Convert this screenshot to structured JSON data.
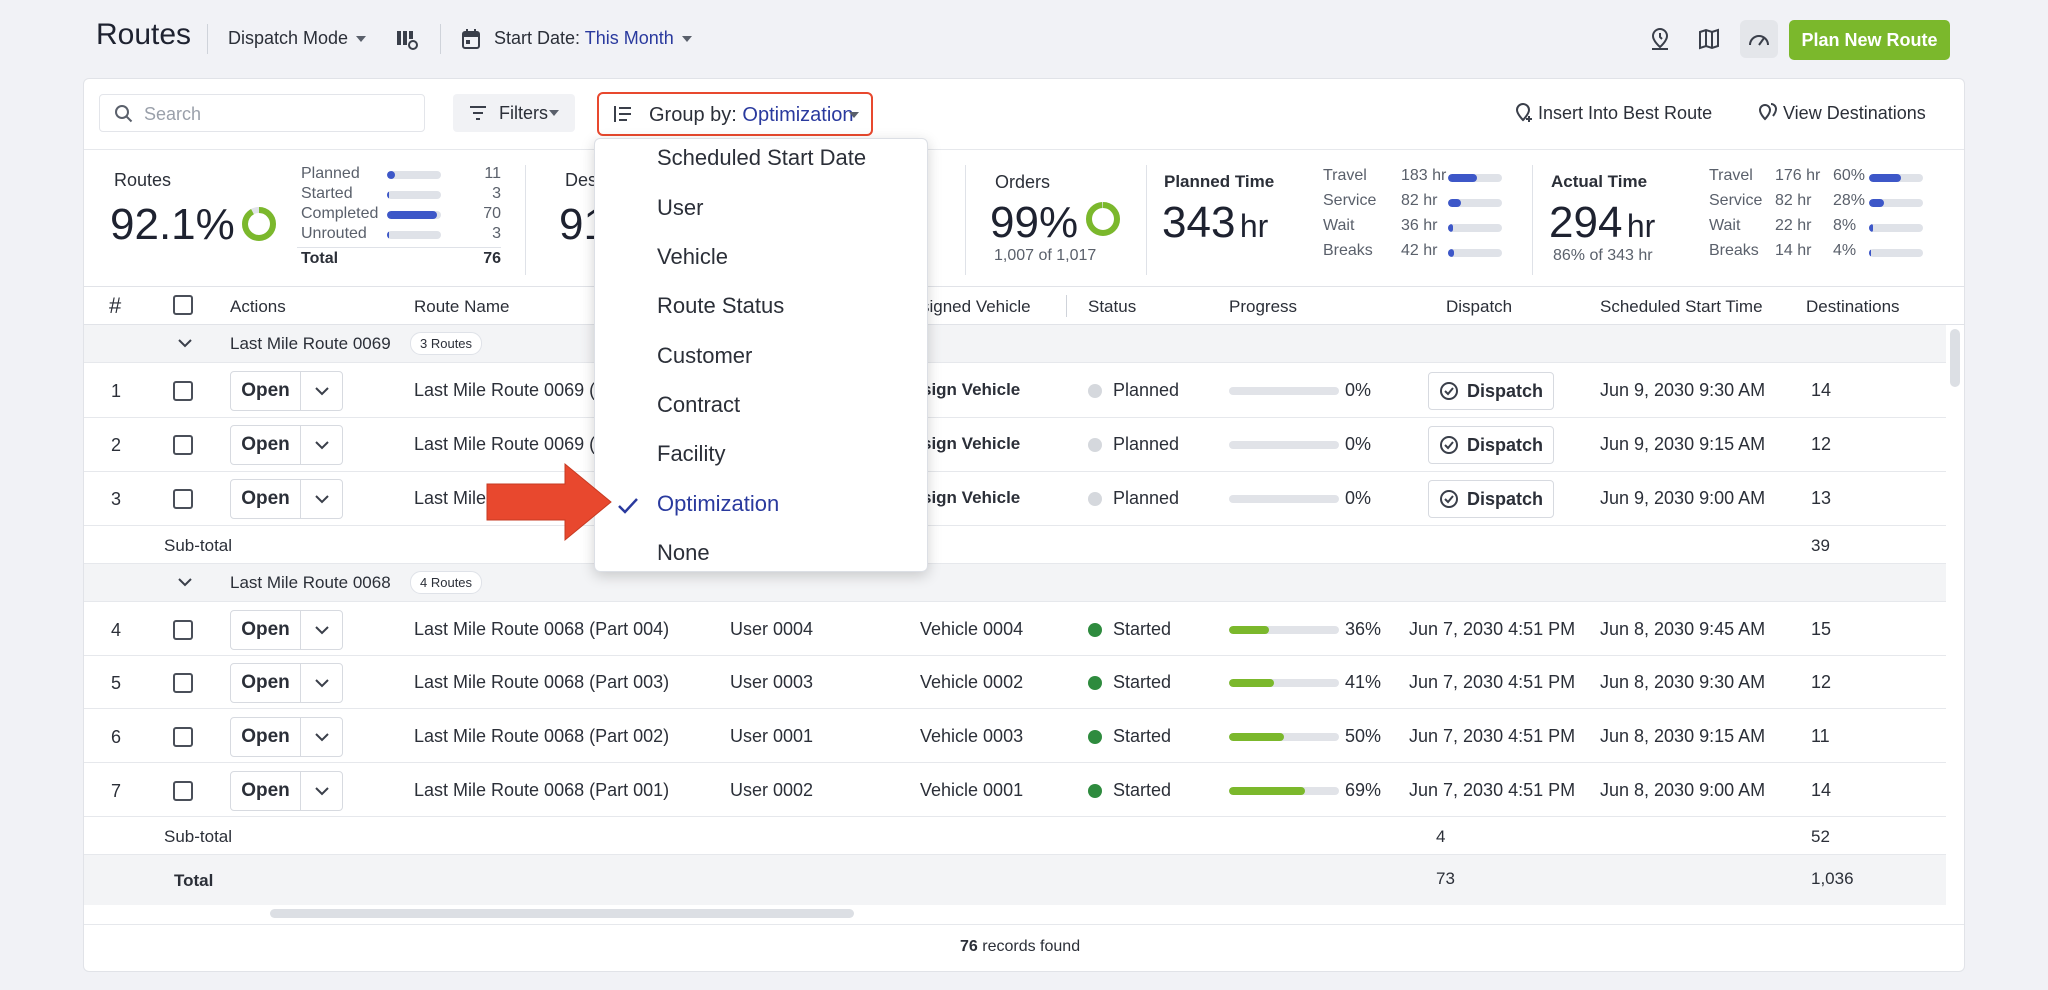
{
  "header": {
    "title": "Routes",
    "mode_label": "Dispatch Mode",
    "start_date_label": "Start Date:",
    "start_date_value": "This Month",
    "plan_button": "Plan New Route"
  },
  "toolbar": {
    "search_placeholder": "Search",
    "filters_label": "Filters",
    "group_by_label": "Group by:",
    "group_by_value": "Optimization",
    "insert_best_route": "Insert Into Best Route",
    "view_destinations": "View Destinations"
  },
  "stats": {
    "routes": {
      "label": "Routes",
      "percent": "92.1%",
      "ring_fraction": 0.921,
      "rows": [
        {
          "label": "Planned",
          "value": "11",
          "fraction": 0.14
        },
        {
          "label": "Started",
          "value": "3",
          "fraction": 0.04
        },
        {
          "label": "Completed",
          "value": "70",
          "fraction": 0.92
        },
        {
          "label": "Unrouted",
          "value": "3",
          "fraction": 0.04
        }
      ],
      "total_label": "Total",
      "total_value": "76"
    },
    "destinations": {
      "label": "Des",
      "percent": "91"
    },
    "orders": {
      "label": "Orders",
      "percent": "99%",
      "ring_fraction": 0.99,
      "sub": "1,007 of 1,017"
    },
    "planned_time": {
      "label": "Planned Time",
      "value": "343",
      "unit": "hr",
      "rows": [
        {
          "label": "Travel",
          "value": "183 hr",
          "fraction": 0.53
        },
        {
          "label": "Service",
          "value": "82 hr",
          "fraction": 0.24
        },
        {
          "label": "Wait",
          "value": "36 hr",
          "fraction": 0.1
        },
        {
          "label": "Breaks",
          "value": "42 hr",
          "fraction": 0.12
        }
      ]
    },
    "actual_time": {
      "label": "Actual Time",
      "value": "294",
      "unit": "hr",
      "sub": "86% of 343 hr",
      "rows": [
        {
          "label": "Travel",
          "value": "176 hr",
          "pct": "60%",
          "fraction": 0.6
        },
        {
          "label": "Service",
          "value": "82 hr",
          "pct": "28%",
          "fraction": 0.28
        },
        {
          "label": "Wait",
          "value": "22 hr",
          "pct": "8%",
          "fraction": 0.08
        },
        {
          "label": "Breaks",
          "value": "14 hr",
          "pct": "4%",
          "fraction": 0.04
        }
      ]
    }
  },
  "table": {
    "columns": {
      "num": "#",
      "actions": "Actions",
      "route_name": "Route Name",
      "assigned_vehicle": "signed Vehicle",
      "status": "Status",
      "progress": "Progress",
      "dispatch": "Dispatch",
      "scheduled_start": "Scheduled Start Time",
      "destinations": "Destinations"
    },
    "open_label": "Open",
    "dispatch_label": "Dispatch",
    "group1": {
      "name": "Last Mile Route 0069",
      "badge": "3 Routes",
      "rows": [
        {
          "num": "1",
          "route": "Last Mile Route 0069 (",
          "vehicle": "sign Vehicle",
          "status": "Planned",
          "progress": "0%",
          "progress_fraction": 0,
          "start": "Jun 9, 2030 9:30 AM",
          "dest": "14"
        },
        {
          "num": "2",
          "route": "Last Mile Route 0069 (",
          "vehicle": "sign Vehicle",
          "status": "Planned",
          "progress": "0%",
          "progress_fraction": 0,
          "start": "Jun 9, 2030 9:15 AM",
          "dest": "12"
        },
        {
          "num": "3",
          "route": "Last Mile",
          "vehicle": "sign Vehicle",
          "status": "Planned",
          "progress": "0%",
          "progress_fraction": 0,
          "start": "Jun 9, 2030 9:00 AM",
          "dest": "13"
        }
      ],
      "subtotal_label": "Sub-total",
      "subtotal_dest": "39"
    },
    "group2": {
      "name": "Last Mile Route 0068",
      "badge": "4 Routes",
      "rows": [
        {
          "num": "4",
          "route": "Last Mile Route 0068 (Part 004)",
          "user": "User 0004",
          "vehicle": "Vehicle 0004",
          "status": "Started",
          "progress": "36%",
          "progress_fraction": 0.36,
          "dispatch": "Jun 7, 2030 4:51 PM",
          "start": "Jun 8, 2030 9:45 AM",
          "dest": "15"
        },
        {
          "num": "5",
          "route": "Last Mile Route 0068 (Part 003)",
          "user": "User 0003",
          "vehicle": "Vehicle 0002",
          "status": "Started",
          "progress": "41%",
          "progress_fraction": 0.41,
          "dispatch": "Jun 7, 2030 4:51 PM",
          "start": "Jun 8, 2030 9:30 AM",
          "dest": "12"
        },
        {
          "num": "6",
          "route": "Last Mile Route 0068 (Part 002)",
          "user": "User 0001",
          "vehicle": "Vehicle 0003",
          "status": "Started",
          "progress": "50%",
          "progress_fraction": 0.5,
          "dispatch": "Jun 7, 2030 4:51 PM",
          "start": "Jun 8, 2030 9:15 AM",
          "dest": "11"
        },
        {
          "num": "7",
          "route": "Last Mile Route 0068 (Part 001)",
          "user": "User 0002",
          "vehicle": "Vehicle 0001",
          "status": "Started",
          "progress": "69%",
          "progress_fraction": 0.69,
          "dispatch": "Jun 7, 2030 4:51 PM",
          "start": "Jun 8, 2030 9:00 AM",
          "dest": "14"
        }
      ],
      "subtotal_label": "Sub-total",
      "subtotal_dispatch": "4",
      "subtotal_dest": "52"
    },
    "total_label": "Total",
    "total_dispatch": "73",
    "total_dest": "1,036"
  },
  "footer": {
    "records_count": "76",
    "records_text": "records found"
  },
  "dropdown": {
    "items": [
      "Scheduled Start Date",
      "User",
      "Vehicle",
      "Route Status",
      "Customer",
      "Contract",
      "Facility",
      "Optimization",
      "None"
    ],
    "selected": "Optimization"
  },
  "colors": {
    "accent_green": "#7bb82c",
    "link_blue": "#2a3a9e",
    "highlight_red": "#e8482e",
    "started_green": "#2e8b3e",
    "planned_gray": "#d5d8dd"
  }
}
